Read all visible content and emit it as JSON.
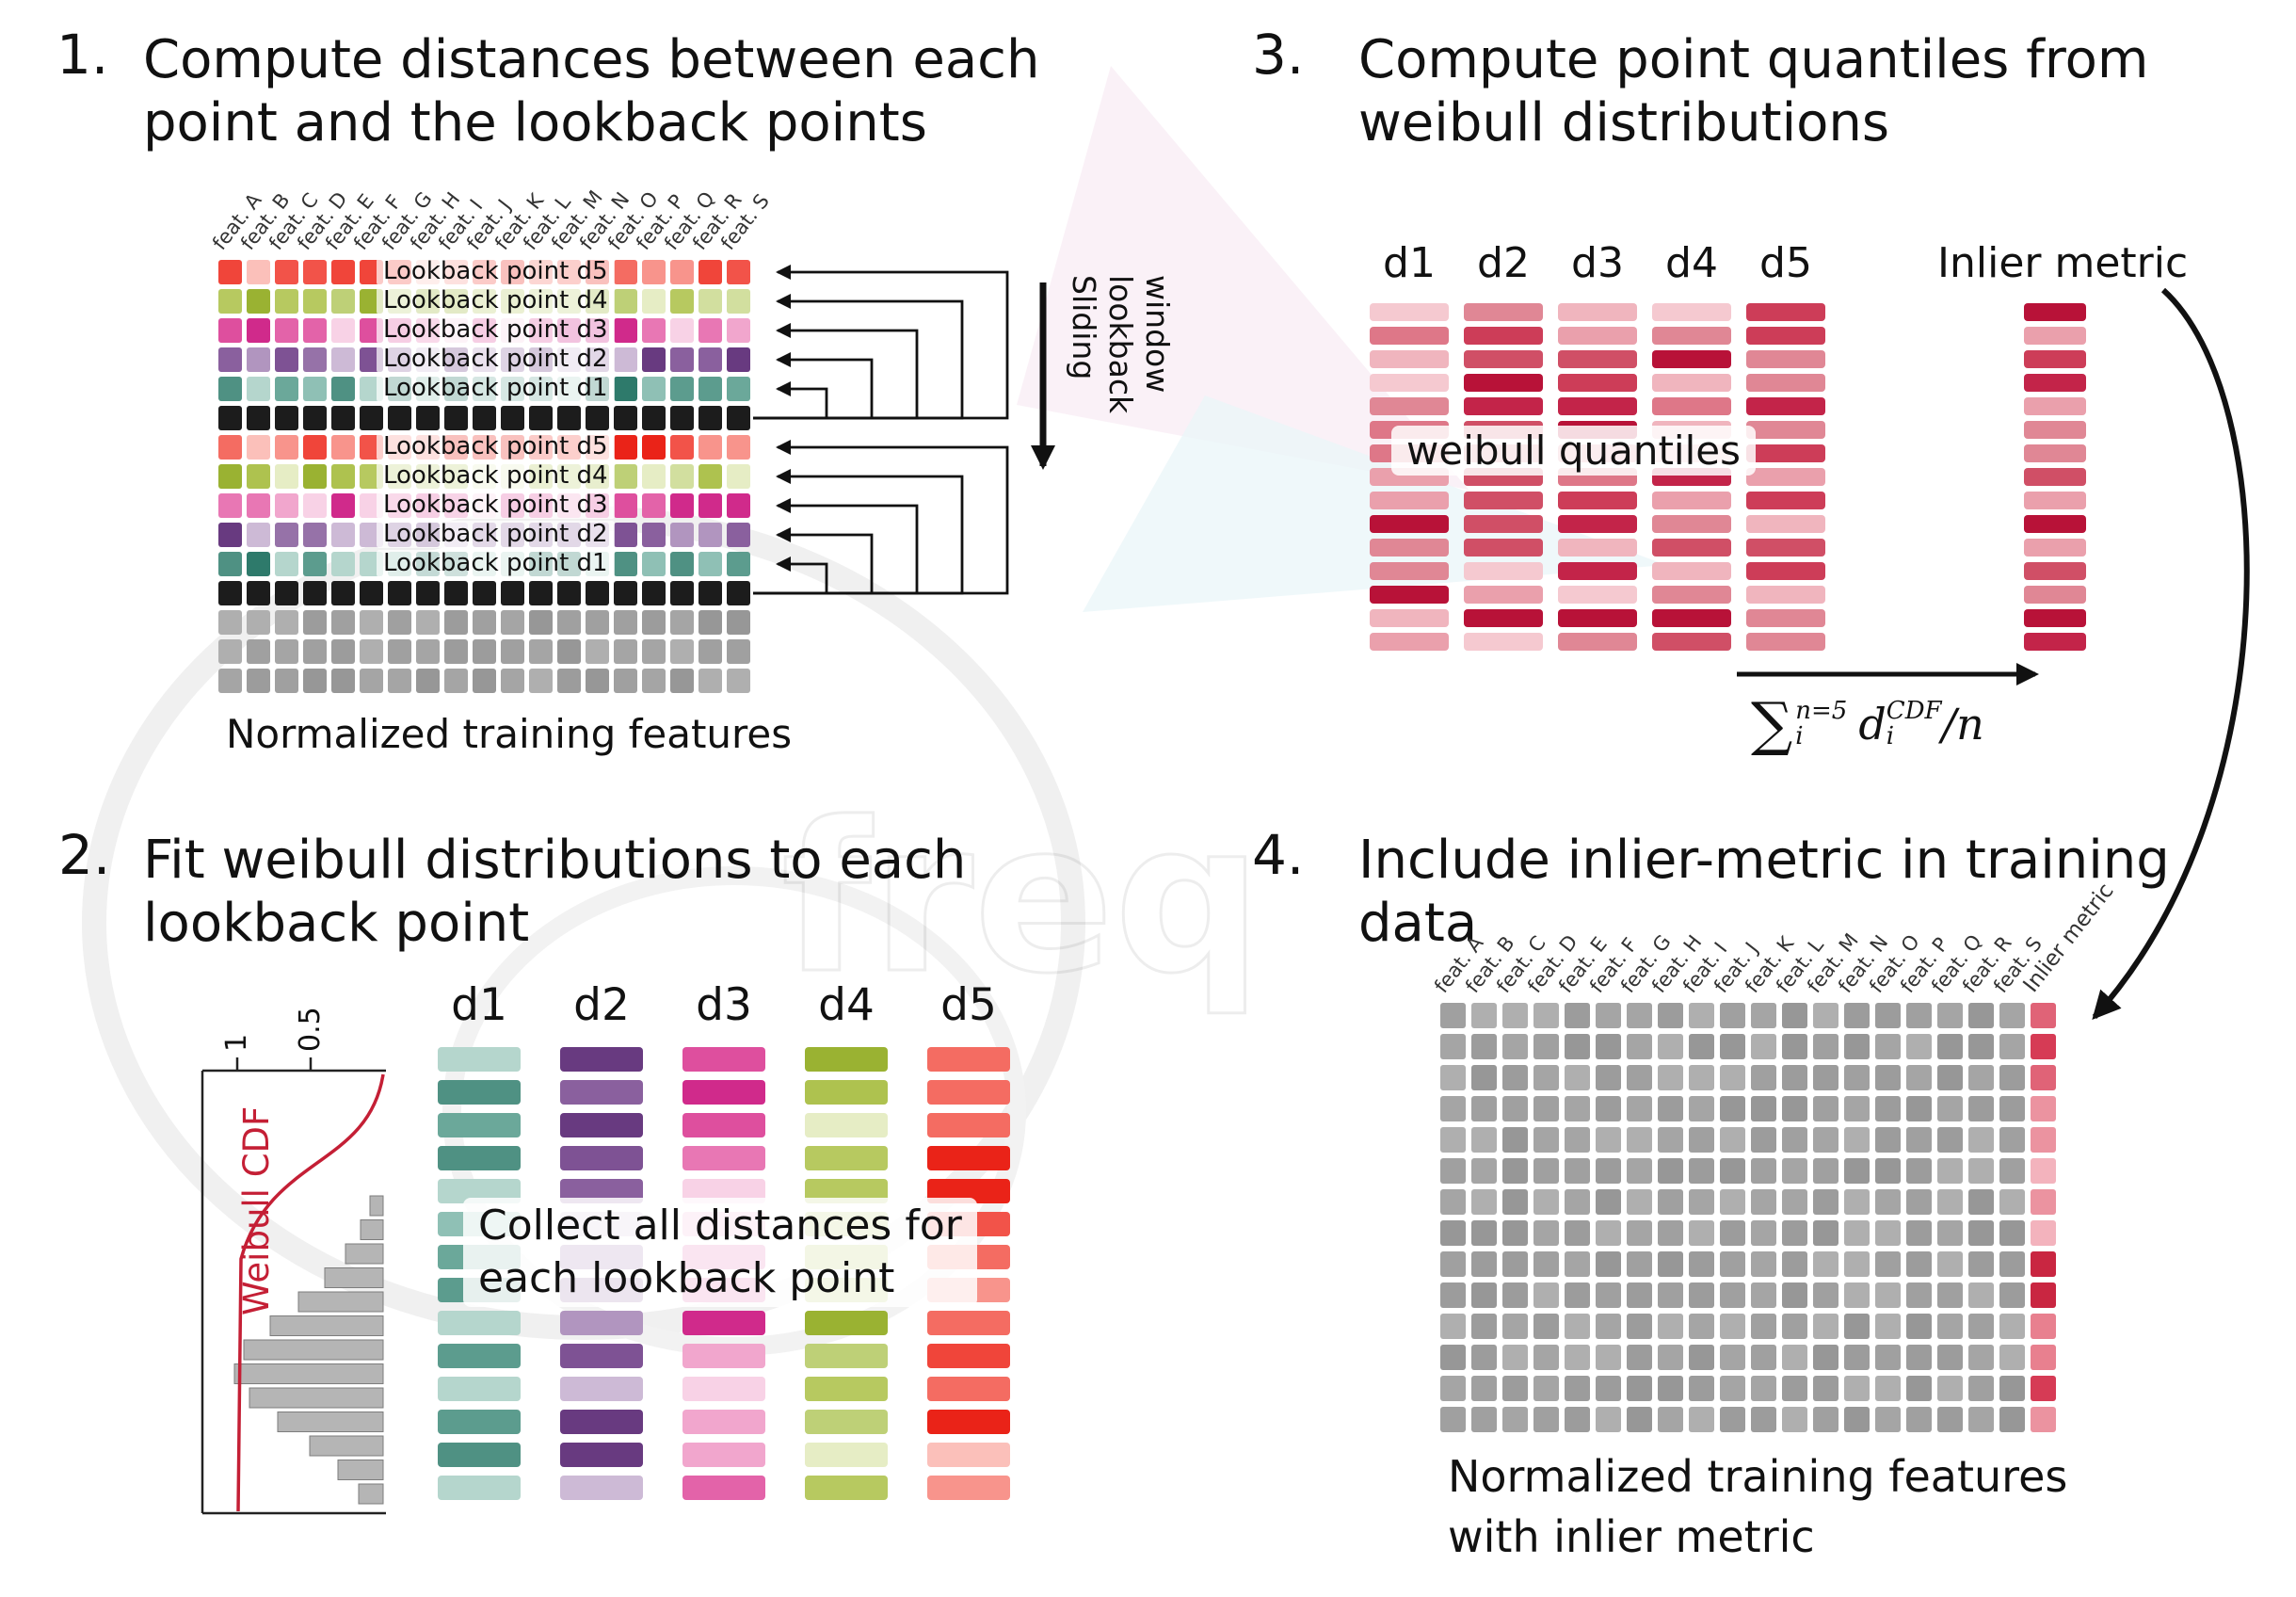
{
  "panel1": {
    "number": "1.",
    "title": [
      "Compute distances between each",
      "point and the lookback points"
    ],
    "caption": "Normalized training features",
    "sliding_label": "Sliding\nlookback\nwindow",
    "feature_labels": [
      "feat. A",
      "feat. B",
      "feat. C",
      "feat. D",
      "feat. E",
      "feat. F",
      "feat. G",
      "feat. H",
      "feat. I",
      "feat. J",
      "feat. K",
      "feat. L",
      "feat. M",
      "feat. N",
      "feat. O",
      "feat. P",
      "feat. Q",
      "feat. R",
      "feat. S"
    ],
    "grid": {
      "cols": 19,
      "rows": [
        {
          "type": "d5",
          "label": "Lookback point d5"
        },
        {
          "type": "d4",
          "label": "Lookback point d4"
        },
        {
          "type": "d3",
          "label": "Lookback point d3"
        },
        {
          "type": "d2",
          "label": "Lookback point d2"
        },
        {
          "type": "d1",
          "label": "Lookback point d1"
        },
        {
          "type": "black"
        },
        {
          "type": "d5",
          "label": "Lookback point d5"
        },
        {
          "type": "d4",
          "label": "Lookback point d4"
        },
        {
          "type": "d3",
          "label": "Lookback point d3"
        },
        {
          "type": "d2",
          "label": "Lookback point d2"
        },
        {
          "type": "d1",
          "label": "Lookback point d1"
        },
        {
          "type": "black"
        },
        {
          "type": "gray"
        },
        {
          "type": "gray"
        },
        {
          "type": "gray"
        }
      ]
    }
  },
  "panel2": {
    "number": "2.",
    "title": [
      "Fit weibull distributions to each",
      "lookback point"
    ],
    "plot": {
      "ylabel": "Weibull CDF",
      "tick_1": "1",
      "tick_05": "0.5",
      "hist_bar_lengths": [
        14,
        24,
        40,
        62,
        90,
        120,
        148,
        158,
        142,
        112,
        78,
        48,
        26
      ]
    },
    "columns": [
      {
        "label": "d1",
        "palette": "d1"
      },
      {
        "label": "d2",
        "palette": "d2"
      },
      {
        "label": "d3",
        "palette": "d3"
      },
      {
        "label": "d4",
        "palette": "d4"
      },
      {
        "label": "d5",
        "palette": "d5"
      }
    ],
    "bar_count": 14,
    "overlay": "Collect all distances for\neach lookback point"
  },
  "panel3": {
    "number": "3.",
    "title": [
      "Compute point quantiles from",
      "weibull distributions"
    ],
    "columns": [
      {
        "label": "d1"
      },
      {
        "label": "d2"
      },
      {
        "label": "d3"
      },
      {
        "label": "d4"
      },
      {
        "label": "d5"
      }
    ],
    "bar_count": 15,
    "overlay": "weibull quantiles",
    "inlier_label": "Inlier metric",
    "formula": {
      "sigma": "∑",
      "upper": "n=5",
      "lower": "i",
      "variable": "d",
      "var_upper": "CDF",
      "var_lower": "i",
      "divisor": "/n"
    }
  },
  "panel4": {
    "number": "4.",
    "title": [
      "Include inlier-metric in training",
      "data"
    ],
    "feature_labels": [
      "feat. A",
      "feat. B",
      "feat. C",
      "feat. D",
      "feat. E",
      "feat. F",
      "feat. G",
      "feat. H",
      "feat. I",
      "feat. J",
      "feat. K",
      "feat. L",
      "feat. M",
      "feat. N",
      "feat. O",
      "feat. P",
      "feat. Q",
      "feat. R",
      "feat. S"
    ],
    "inlier_label": "Inlier metric",
    "caption": "Normalized training features\nwith inlier metric",
    "grid": {
      "cols": 20,
      "rows": 14
    }
  },
  "watermark": {
    "text": "freq"
  },
  "palettes": {
    "d1": [
      "#4f9183",
      "#6ba89a",
      "#8fc0b5",
      "#2e7a6b",
      "#b5d6cd",
      "#5c9c8e",
      "#217361"
    ],
    "d2": [
      "#7e5294",
      "#9672a8",
      "#b195bf",
      "#683a80",
      "#cdbad6",
      "#8a609e"
    ],
    "d3": [
      "#de4f9e",
      "#e877b4",
      "#f1a6cd",
      "#d02a8b",
      "#f8d2e6",
      "#e363a9"
    ],
    "d4": [
      "#aec24f",
      "#bed077",
      "#d2df9f",
      "#9ab232",
      "#e6edc5",
      "#b7c960"
    ],
    "d5": [
      "#f0453a",
      "#f46c62",
      "#f8948c",
      "#ea2318",
      "#fbc0ba",
      "#f25349"
    ],
    "black": [
      "#1c1c1c"
    ],
    "gray": [
      "#9c9c9c",
      "#a5a5a5",
      "#afafaf",
      "#979797",
      "#a0a0a0"
    ],
    "crimson": [
      "#c32449",
      "#d04f66",
      "#de7788",
      "#eaa0ac",
      "#f5c9d0",
      "#b81238",
      "#e08795",
      "#cd3d58",
      "#f0b5be"
    ],
    "inlier": [
      "#e06377",
      "#f3b3bd",
      "#e8808f",
      "#d63b55",
      "#f7ccd3",
      "#eb93a0",
      "#c92641"
    ]
  }
}
